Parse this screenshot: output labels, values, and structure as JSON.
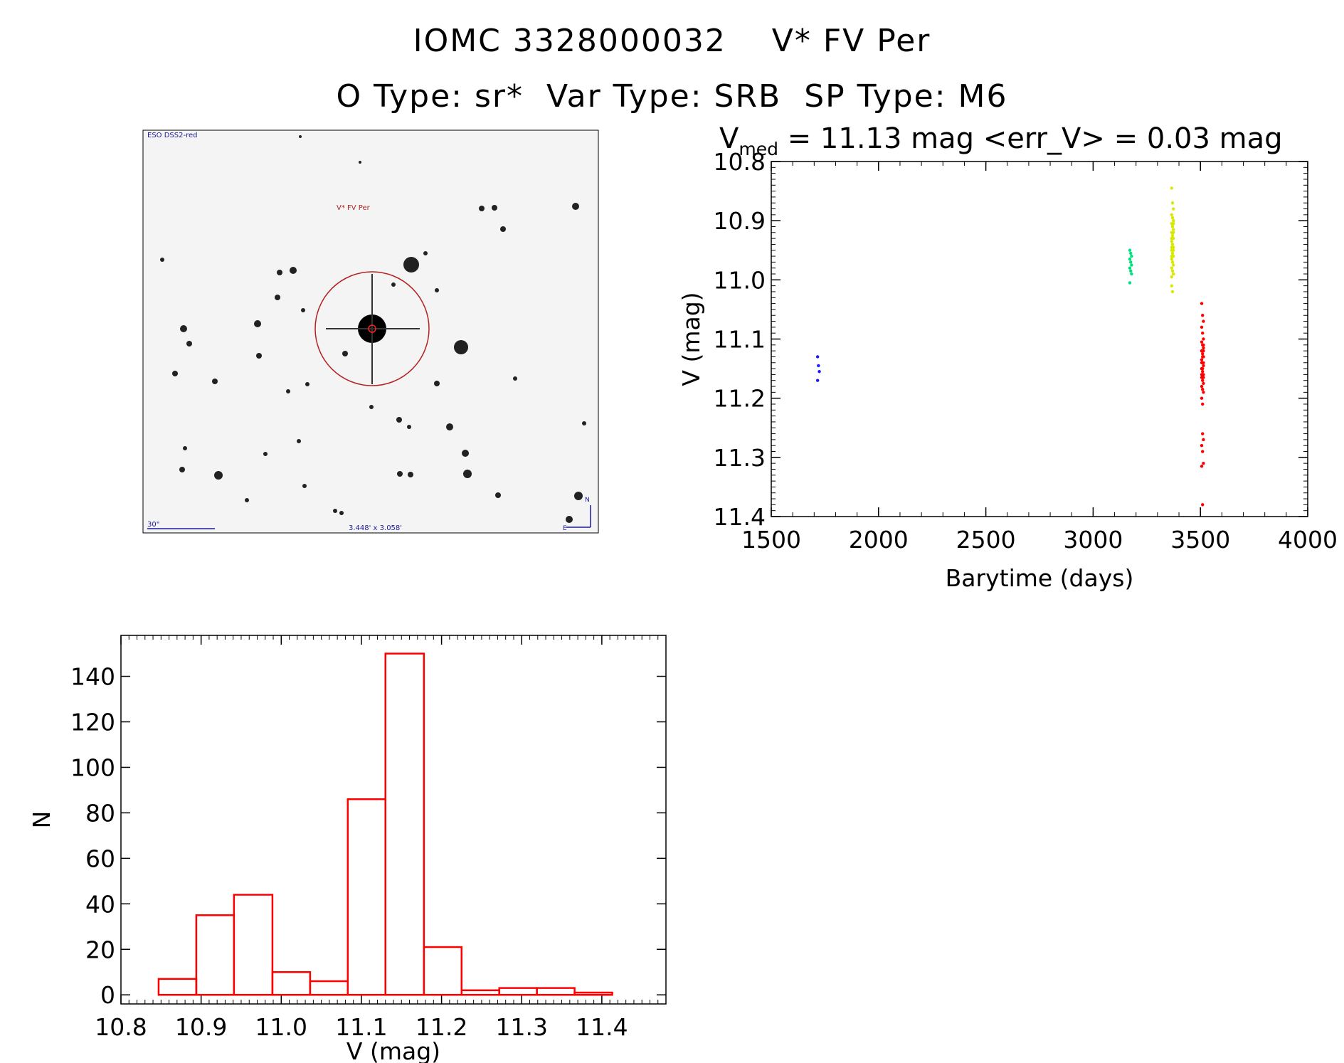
{
  "header": {
    "line1": "IOMC 3328000032    V* FV Per",
    "line2": "O Type: sr*  Var Type: SRB  SP Type: M6"
  },
  "finder_image": {
    "survey_label": "ESO DSS2-red",
    "target_label": "V* FV Per",
    "scale_label": "30\"",
    "fov_label": "3.448' x 3.058'",
    "north_label": "N",
    "east_label": "E"
  },
  "lightcurve": {
    "title_v": "V",
    "title_sub": "med",
    "title_rest": " = 11.13 mag <err_V> = 0.03 mag"
  },
  "chart_data": [
    {
      "type": "scatter",
      "xlabel": "Barytime (days)",
      "ylabel": "V (mag)",
      "xlim": [
        1500,
        4000
      ],
      "ylim": [
        11.4,
        10.8
      ],
      "y_inverted": true,
      "xticks": [
        "1500",
        "2000",
        "2500",
        "3000",
        "3500",
        "4000"
      ],
      "yticks": [
        "10.8",
        "10.9",
        "11.0",
        "11.1",
        "11.2",
        "11.3",
        "11.4"
      ],
      "series": [
        {
          "color": "#1a1aff",
          "x": [
            1720,
            1720,
            1720,
            1720
          ],
          "y": [
            11.13,
            11.145,
            11.155,
            11.17
          ]
        },
        {
          "color": "#00e080",
          "x": [
            3175,
            3175,
            3175,
            3175,
            3175,
            3175,
            3175,
            3175,
            3175,
            3175
          ],
          "y": [
            10.95,
            10.955,
            10.96,
            10.965,
            10.97,
            10.975,
            10.98,
            10.985,
            10.99,
            11.005
          ]
        },
        {
          "color": "#d8e800",
          "x": [
            3370,
            3370,
            3370,
            3370,
            3370,
            3370,
            3370,
            3370,
            3370,
            3370,
            3370,
            3370,
            3370,
            3370,
            3370,
            3370,
            3370,
            3370,
            3370,
            3370,
            3370,
            3370,
            3370,
            3370,
            3370,
            3370,
            3370,
            3370,
            3370,
            3370,
            3370,
            3370,
            3370,
            3370,
            3370,
            3370,
            3370,
            3370,
            3370,
            3370
          ],
          "y": [
            10.845,
            10.87,
            10.88,
            10.89,
            10.895,
            10.9,
            10.905,
            10.91,
            10.915,
            10.92,
            10.925,
            10.93,
            10.935,
            10.94,
            10.945,
            10.95,
            10.955,
            10.96,
            10.965,
            10.97,
            10.975,
            10.98,
            10.985,
            10.99,
            10.995,
            10.91,
            10.92,
            10.93,
            10.94,
            10.95,
            10.96,
            10.97,
            10.9,
            10.93,
            10.96,
            10.99,
            11.01,
            11.02,
            10.905,
            10.945
          ]
        },
        {
          "color": "#ff0000",
          "x": [
            3510,
            3510,
            3510,
            3510,
            3510,
            3510,
            3510,
            3510,
            3510,
            3510,
            3510,
            3510,
            3510,
            3510,
            3510,
            3510,
            3510,
            3510,
            3510,
            3510,
            3510,
            3510,
            3510,
            3510,
            3510,
            3510,
            3510,
            3510,
            3510,
            3510,
            3510,
            3510,
            3510,
            3510,
            3510,
            3510,
            3510,
            3510,
            3510,
            3510,
            3510,
            3510,
            3510,
            3510,
            3510
          ],
          "y": [
            11.04,
            11.06,
            11.07,
            11.08,
            11.09,
            11.1,
            11.105,
            11.11,
            11.115,
            11.12,
            11.125,
            11.13,
            11.135,
            11.14,
            11.145,
            11.15,
            11.155,
            11.16,
            11.165,
            11.17,
            11.175,
            11.18,
            11.185,
            11.19,
            11.2,
            11.21,
            11.11,
            11.12,
            11.13,
            11.14,
            11.15,
            11.16,
            11.13,
            11.14,
            11.15,
            11.12,
            11.16,
            11.26,
            11.27,
            11.28,
            11.29,
            11.31,
            11.315,
            11.38,
            11.165
          ]
        }
      ]
    },
    {
      "type": "bar",
      "xlabel": "V (mag)",
      "ylabel": "N",
      "xlim": [
        10.8,
        11.48
      ],
      "ylim": [
        -4,
        158
      ],
      "xticks": [
        "10.8",
        "10.9",
        "11.0",
        "11.1",
        "11.2",
        "11.3",
        "11.4"
      ],
      "yticks": [
        "0",
        "20",
        "40",
        "60",
        "80",
        "100",
        "120",
        "140"
      ],
      "bin_edges": [
        10.847,
        10.894,
        10.941,
        10.989,
        11.036,
        11.083,
        11.13,
        11.178,
        11.225,
        11.272,
        11.319,
        11.366,
        11.413
      ],
      "values": [
        7,
        35,
        44,
        10,
        6,
        86,
        150,
        21,
        2,
        3,
        3,
        1
      ],
      "color": "#ff0000"
    }
  ]
}
